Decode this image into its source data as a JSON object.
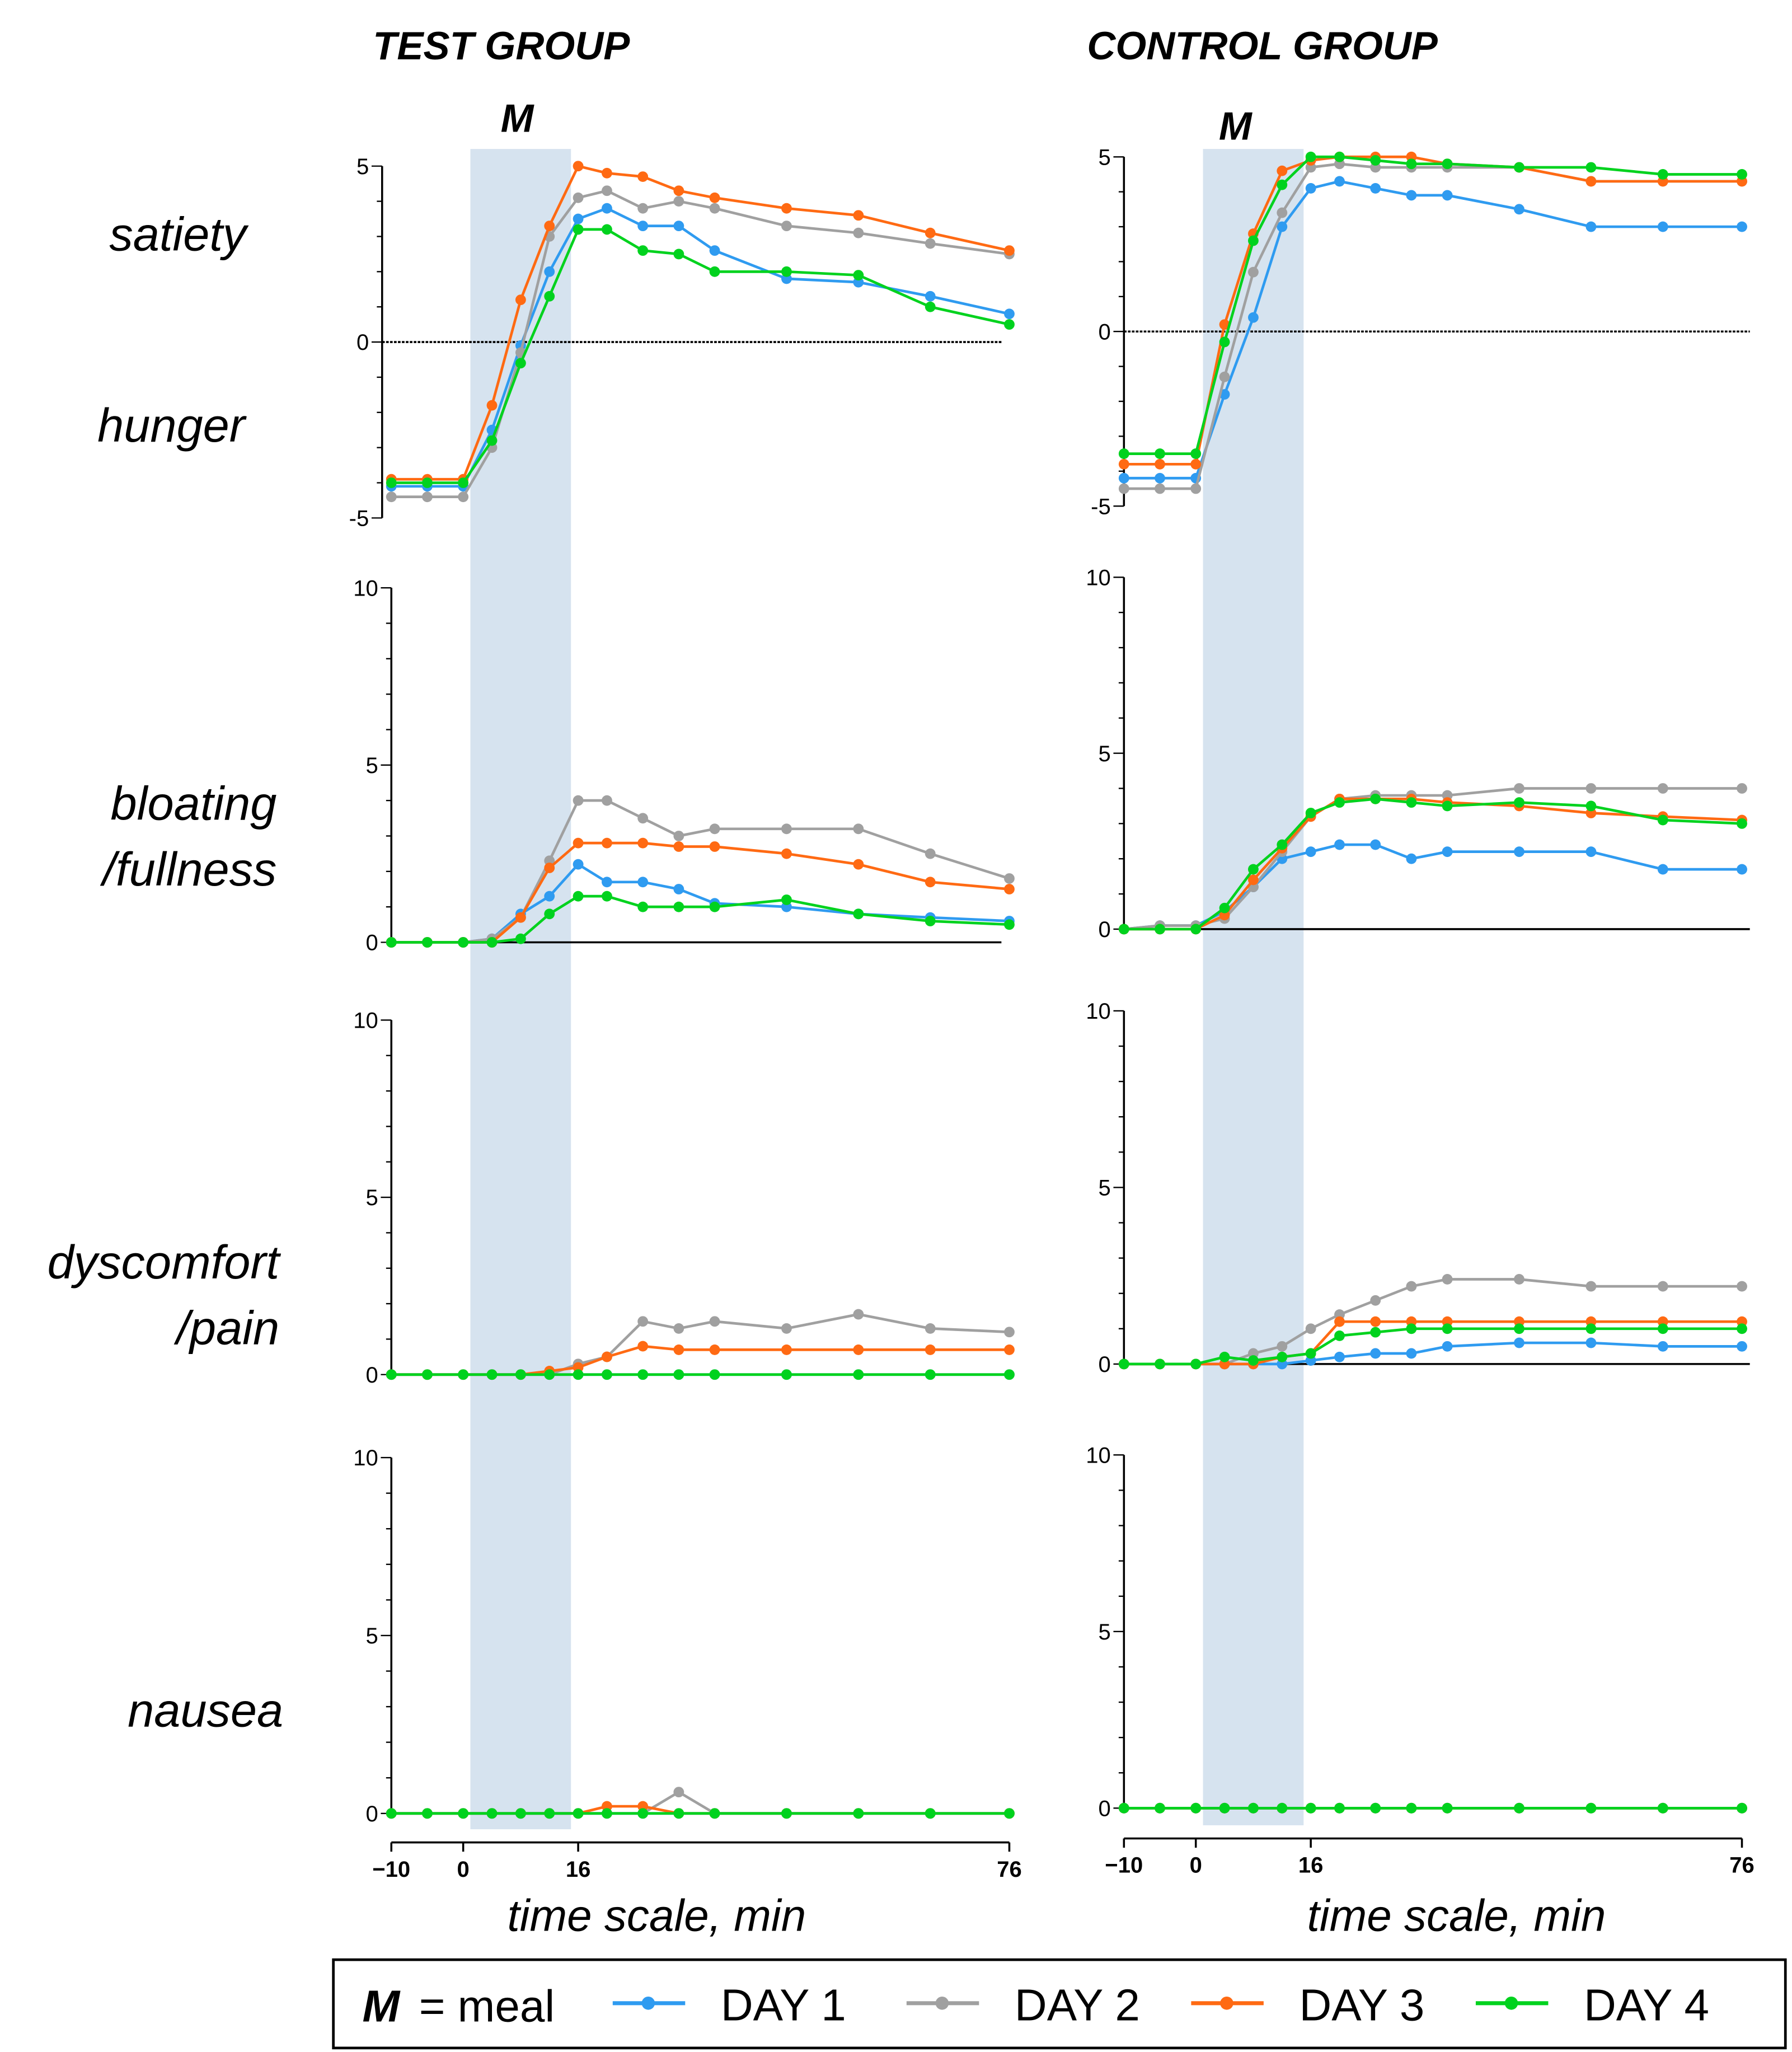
{
  "chart_data": [
    {
      "type": "line",
      "panels_title": [
        "TEST GROUP",
        "CONTROL GROUP"
      ],
      "meal_label": "M",
      "meal_window": [
        1,
        15
      ],
      "xlabel": "time scale, min",
      "xticks": [
        -10,
        0,
        16,
        76
      ],
      "x": [
        -10,
        -5,
        0,
        4,
        8,
        12,
        16,
        20,
        25,
        30,
        35,
        45,
        55,
        65,
        76
      ],
      "legend": {
        "meal_key": "M",
        "meal_text": "= meal",
        "placement": "bottom",
        "entries": [
          "DAY 1",
          "DAY 2",
          "DAY 3",
          "DAY 4"
        ]
      },
      "colors": {
        "DAY 1": "#2F9BF0",
        "DAY 2": "#A0A0A0",
        "DAY 3": "#FF6A13",
        "DAY 4": "#00D21E",
        "meal_shade": "#D6E3EF"
      },
      "rows": [
        {
          "labels": [
            "satiety",
            "hunger"
          ],
          "ylim": [
            -5,
            5
          ],
          "yticks": [
            -5,
            0,
            5
          ],
          "zero_line": true,
          "test": [
            [
              -4.1,
              -4.1,
              -4.1,
              -2.5,
              -0.1,
              2.0,
              3.5,
              3.8,
              3.3,
              3.3,
              2.6,
              1.8,
              1.7,
              1.3,
              0.8
            ],
            [
              -4.4,
              -4.4,
              -4.4,
              -3.0,
              -0.3,
              3.0,
              4.1,
              4.3,
              3.8,
              4.0,
              3.8,
              3.3,
              3.1,
              2.8,
              2.5
            ],
            [
              -3.9,
              -3.9,
              -3.9,
              -1.8,
              1.2,
              3.3,
              5.0,
              4.8,
              4.7,
              4.3,
              4.1,
              3.8,
              3.6,
              3.1,
              2.6
            ],
            [
              -4.0,
              -4.0,
              -4.0,
              -2.8,
              -0.6,
              1.3,
              3.2,
              3.2,
              2.6,
              2.5,
              2.0,
              2.0,
              1.9,
              1.0,
              0.5
            ]
          ],
          "control": [
            [
              -4.2,
              -4.2,
              -4.2,
              -1.8,
              0.4,
              3.0,
              4.1,
              4.3,
              4.1,
              3.9,
              3.9,
              3.5,
              3.0,
              3.0,
              3.0
            ],
            [
              -4.5,
              -4.5,
              -4.5,
              -1.3,
              1.7,
              3.4,
              4.7,
              4.8,
              4.7,
              4.7,
              4.7,
              4.7,
              4.3,
              4.3,
              4.3
            ],
            [
              -3.8,
              -3.8,
              -3.8,
              0.2,
              2.8,
              4.6,
              4.9,
              5.0,
              5.0,
              5.0,
              4.8,
              4.7,
              4.3,
              4.3,
              4.3
            ],
            [
              -3.5,
              -3.5,
              -3.5,
              -0.3,
              2.6,
              4.2,
              5.0,
              5.0,
              4.9,
              4.8,
              4.8,
              4.7,
              4.7,
              4.5,
              4.5
            ]
          ]
        },
        {
          "labels": [
            "bloating",
            "/fullness"
          ],
          "ylim": [
            0,
            10
          ],
          "yticks": [
            0,
            5,
            10
          ],
          "zero_line": true,
          "test": [
            [
              0,
              0,
              0,
              0.1,
              0.8,
              1.3,
              2.2,
              1.7,
              1.7,
              1.5,
              1.1,
              1.0,
              0.8,
              0.7,
              0.6
            ],
            [
              0,
              0,
              0,
              0.1,
              0.7,
              2.3,
              4.0,
              4.0,
              3.5,
              3.0,
              3.2,
              3.2,
              3.2,
              2.5,
              1.8
            ],
            [
              0,
              0,
              0,
              0,
              0.7,
              2.1,
              2.8,
              2.8,
              2.8,
              2.7,
              2.7,
              2.5,
              2.2,
              1.7,
              1.5
            ],
            [
              0,
              0,
              0,
              0,
              0.1,
              0.8,
              1.3,
              1.3,
              1.0,
              1.0,
              1.0,
              1.2,
              0.8,
              0.6,
              0.5
            ]
          ],
          "control": [
            [
              0,
              0.1,
              0.1,
              0.5,
              1.2,
              2.0,
              2.2,
              2.4,
              2.4,
              2.0,
              2.2,
              2.2,
              2.2,
              1.7,
              1.7
            ],
            [
              0,
              0.1,
              0.1,
              0.3,
              1.2,
              2.2,
              3.2,
              3.7,
              3.8,
              3.8,
              3.8,
              4.0,
              4.0,
              4.0,
              4.0
            ],
            [
              0,
              0,
              0,
              0.4,
              1.4,
              2.3,
              3.2,
              3.7,
              3.7,
              3.7,
              3.6,
              3.5,
              3.3,
              3.2,
              3.1
            ],
            [
              0,
              0,
              0,
              0.6,
              1.7,
              2.4,
              3.3,
              3.6,
              3.7,
              3.6,
              3.5,
              3.6,
              3.5,
              3.1,
              3.0
            ]
          ]
        },
        {
          "labels": [
            "dyscomfort",
            "/pain"
          ],
          "ylim": [
            0,
            10
          ],
          "yticks": [
            0,
            5,
            10
          ],
          "zero_line": true,
          "test": [
            [
              0,
              0,
              0,
              0,
              0,
              0,
              0,
              0,
              0,
              0,
              0,
              0,
              0,
              0,
              0
            ],
            [
              0,
              0,
              0,
              0,
              0,
              0,
              0.3,
              0.5,
              1.5,
              1.3,
              1.5,
              1.3,
              1.7,
              1.3,
              1.2
            ],
            [
              0,
              0,
              0,
              0,
              0,
              0.1,
              0.2,
              0.5,
              0.8,
              0.7,
              0.7,
              0.7,
              0.7,
              0.7,
              0.7
            ],
            [
              0,
              0,
              0,
              0,
              0,
              0,
              0,
              0,
              0,
              0,
              0,
              0,
              0,
              0,
              0
            ]
          ],
          "control": [
            [
              0,
              0,
              0,
              0,
              0,
              0,
              0.1,
              0.2,
              0.3,
              0.3,
              0.5,
              0.6,
              0.6,
              0.5,
              0.5
            ],
            [
              0,
              0,
              0,
              0,
              0.3,
              0.5,
              1.0,
              1.4,
              1.8,
              2.2,
              2.4,
              2.4,
              2.2,
              2.2,
              2.2
            ],
            [
              0,
              0,
              0,
              0,
              0,
              0.2,
              0.3,
              1.2,
              1.2,
              1.2,
              1.2,
              1.2,
              1.2,
              1.2,
              1.2
            ],
            [
              0,
              0,
              0,
              0.2,
              0.1,
              0.2,
              0.3,
              0.8,
              0.9,
              1.0,
              1.0,
              1.0,
              1.0,
              1.0,
              1.0
            ]
          ]
        },
        {
          "labels": [
            "nausea"
          ],
          "ylim": [
            0,
            10
          ],
          "yticks": [
            0,
            5,
            10
          ],
          "zero_line": false,
          "test": [
            [
              0,
              0,
              0,
              0,
              0,
              0,
              0,
              0,
              0,
              0,
              0,
              0,
              0,
              0,
              0
            ],
            [
              0,
              0,
              0,
              0,
              0,
              0,
              0,
              0,
              0,
              0.6,
              0,
              0,
              0,
              0,
              0
            ],
            [
              0,
              0,
              0,
              0,
              0,
              0,
              0,
              0.2,
              0.2,
              0,
              0,
              0,
              0,
              0,
              0
            ],
            [
              0,
              0,
              0,
              0,
              0,
              0,
              0,
              0,
              0,
              0,
              0,
              0,
              0,
              0,
              0
            ]
          ],
          "control": [
            [
              0,
              0,
              0,
              0,
              0,
              0,
              0,
              0,
              0,
              0,
              0,
              0,
              0,
              0,
              0
            ],
            [
              0,
              0,
              0,
              0,
              0,
              0,
              0,
              0,
              0,
              0,
              0,
              0,
              0,
              0,
              0
            ],
            [
              0,
              0,
              0,
              0,
              0,
              0,
              0,
              0,
              0,
              0,
              0,
              0,
              0,
              0,
              0
            ],
            [
              0,
              0,
              0,
              0,
              0,
              0,
              0,
              0,
              0,
              0,
              0,
              0,
              0,
              0,
              0
            ]
          ]
        }
      ]
    }
  ]
}
